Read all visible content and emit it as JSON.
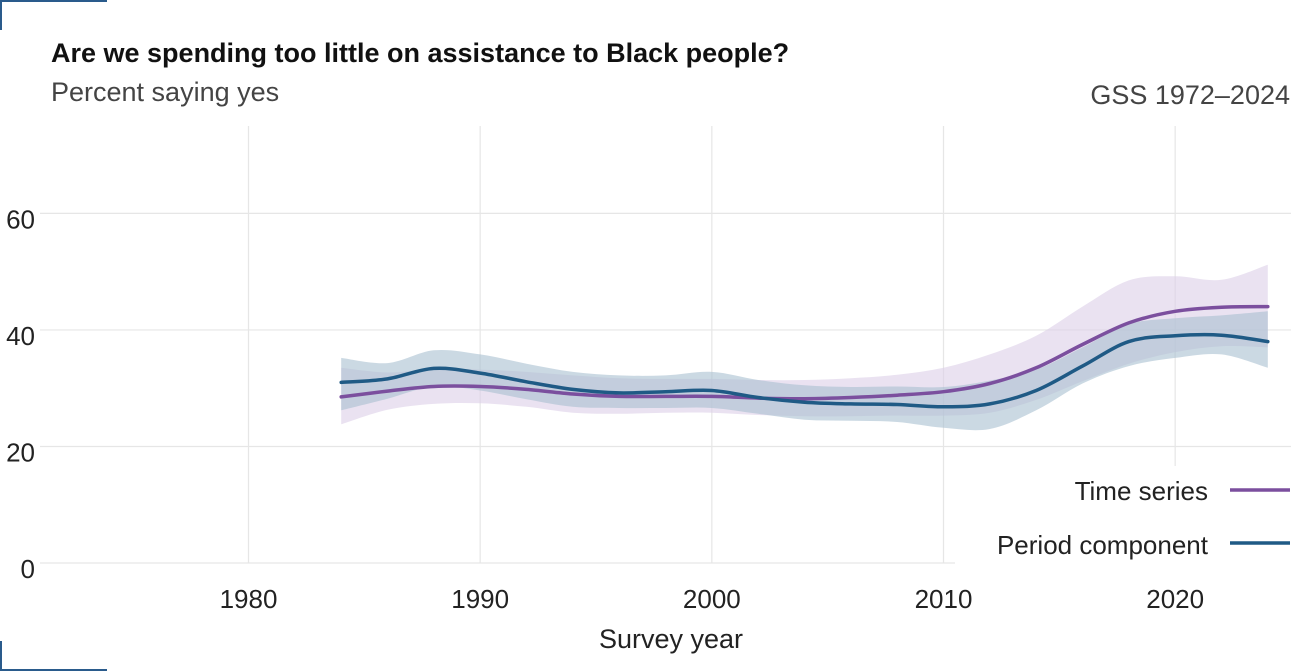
{
  "chart_data": {
    "type": "line",
    "title": "Are we spending too little on assistance to Black people?",
    "subtitle": "Percent saying yes",
    "source": "GSS 1972–2024",
    "xlabel": "Survey year",
    "ylabel": "",
    "xlim": [
      1971,
      2025
    ],
    "ylim": [
      0,
      75
    ],
    "xticks": [
      1980,
      1990,
      2000,
      2010,
      2020
    ],
    "yticks": [
      0,
      20,
      40,
      60
    ],
    "grid": true,
    "legend_position": "bottom-right",
    "series": [
      {
        "name": "Time series",
        "color": "#7b4f9e",
        "band_color": "#dccfe8",
        "x": [
          1984,
          1986,
          1988,
          1990,
          1992,
          1994,
          1996,
          1998,
          2000,
          2002,
          2004,
          2006,
          2008,
          2010,
          2012,
          2014,
          2016,
          2018,
          2020,
          2022,
          2024
        ],
        "y": [
          28.5,
          29.5,
          30.3,
          30.3,
          29.8,
          29.0,
          28.6,
          28.6,
          28.6,
          28.3,
          28.2,
          28.4,
          28.8,
          29.4,
          30.8,
          33.5,
          37.5,
          41.2,
          43.2,
          43.9,
          44.0
        ],
        "lower": [
          23.8,
          26.3,
          27.3,
          27.4,
          26.8,
          25.8,
          25.6,
          25.8,
          25.8,
          25.4,
          25.2,
          25.2,
          25.3,
          25.3,
          25.8,
          28.0,
          31.2,
          34.2,
          36.2,
          37.2,
          37.0
        ],
        "upper": [
          33.5,
          32.7,
          33.3,
          33.2,
          32.8,
          32.2,
          31.7,
          31.6,
          31.6,
          31.4,
          31.4,
          31.7,
          32.3,
          33.5,
          35.8,
          39.0,
          44.0,
          48.5,
          49.2,
          48.6,
          51.2
        ]
      },
      {
        "name": "Period component",
        "color": "#1f5a85",
        "band_color": "#a8bfd0",
        "x": [
          1984,
          1986,
          1988,
          1990,
          1992,
          1994,
          1996,
          1998,
          2000,
          2002,
          2004,
          2006,
          2008,
          2010,
          2012,
          2014,
          2016,
          2018,
          2020,
          2022,
          2024
        ],
        "y": [
          31.0,
          31.6,
          33.4,
          32.6,
          31.1,
          29.8,
          29.2,
          29.4,
          29.6,
          28.4,
          27.6,
          27.3,
          27.2,
          26.8,
          27.3,
          29.6,
          33.8,
          38.0,
          39.0,
          39.1,
          38.0
        ],
        "lower": [
          26.2,
          28.2,
          30.3,
          29.6,
          28.1,
          26.8,
          26.6,
          26.6,
          26.6,
          25.6,
          24.6,
          24.4,
          24.2,
          23.2,
          23.0,
          26.2,
          30.8,
          33.8,
          35.2,
          35.8,
          33.5
        ],
        "upper": [
          35.2,
          34.3,
          36.5,
          35.8,
          34.2,
          32.8,
          32.2,
          32.2,
          32.8,
          31.4,
          30.5,
          30.2,
          30.3,
          30.2,
          31.3,
          33.2,
          37.0,
          41.0,
          42.0,
          42.5,
          43.2
        ]
      }
    ]
  }
}
